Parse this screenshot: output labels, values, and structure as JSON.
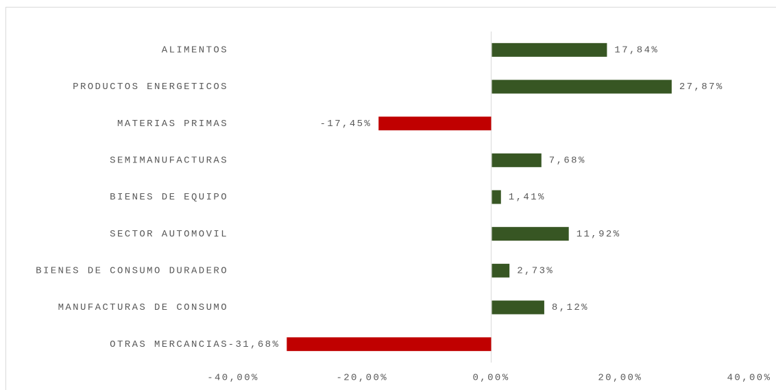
{
  "chart_data": {
    "type": "hbar",
    "categories": [
      "ALIMENTOS",
      "PRODUCTOS ENERGETICOS",
      "MATERIAS PRIMAS",
      "SEMIMANUFACTURAS",
      "BIENES DE EQUIPO",
      "SECTOR AUTOMOVIL",
      "BIENES DE CONSUMO DURADERO",
      "MANUFACTURAS DE CONSUMO",
      "OTRAS MERCANCIAS"
    ],
    "values": [
      17.84,
      27.87,
      -17.45,
      7.68,
      1.41,
      11.92,
      2.73,
      8.12,
      -31.68
    ],
    "value_labels": [
      "17,84%",
      "27,87%",
      "-17,45%",
      "7,68%",
      "1,41%",
      "11,92%",
      "2,73%",
      "8,12%",
      "-31,68%"
    ],
    "colors": [
      "#375623",
      "#375623",
      "#c00000",
      "#375623",
      "#375623",
      "#375623",
      "#375623",
      "#375623",
      "#c00000"
    ],
    "xlim": [
      -40,
      40
    ],
    "xticks": [
      {
        "value": -40,
        "label": "-40,00%"
      },
      {
        "value": -20,
        "label": "-20,00%"
      },
      {
        "value": 0,
        "label": "0,00%"
      },
      {
        "value": 20,
        "label": "20,00%"
      },
      {
        "value": 40,
        "label": "40,00%"
      }
    ],
    "grid": false
  }
}
